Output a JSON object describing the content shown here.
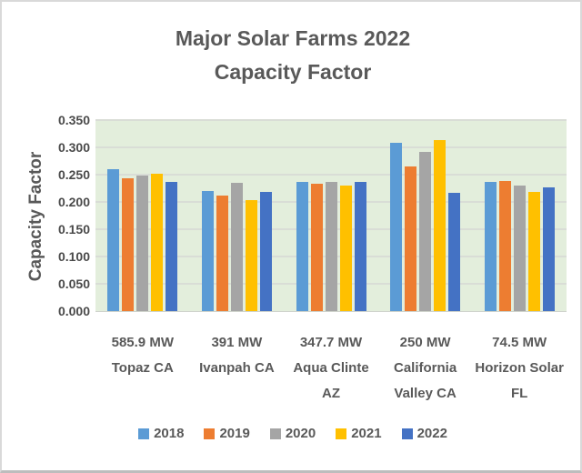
{
  "window": {
    "background": "#ffffff",
    "border_color": "#d9d9d9"
  },
  "chart_data": {
    "type": "bar",
    "title_lines": [
      "Major Solar Farms 2022",
      "Capacity Factor"
    ],
    "ylabel": "Capacity Factor",
    "categories": [
      "585.9 MW Topaz CA",
      "391 MW Ivanpah CA",
      "347.7 MW Aqua Clinte AZ",
      "250 MW California Valley CA",
      "74.5 MW Horizon Solar FL"
    ],
    "categories_lines": [
      [
        "585.9 MW",
        "Topaz CA"
      ],
      [
        "391 MW",
        "Ivanpah CA"
      ],
      [
        "347.7 MW",
        "Aqua Clinte",
        "AZ"
      ],
      [
        "250 MW",
        "California",
        "Valley CA"
      ],
      [
        "74.5 MW",
        "Horizon Solar",
        "FL"
      ]
    ],
    "series": [
      {
        "name": "2018",
        "color": "#5B9BD5",
        "values": [
          0.26,
          0.22,
          0.236,
          0.308,
          0.237
        ]
      },
      {
        "name": "2019",
        "color": "#ED7D31",
        "values": [
          0.243,
          0.211,
          0.233,
          0.265,
          0.238
        ]
      },
      {
        "name": "2020",
        "color": "#A5A5A5",
        "values": [
          0.248,
          0.235,
          0.236,
          0.292,
          0.23
        ]
      },
      {
        "name": "2021",
        "color": "#FFC000",
        "values": [
          0.252,
          0.204,
          0.23,
          0.314,
          0.218
        ]
      },
      {
        "name": "2022",
        "color": "#4472C4",
        "values": [
          0.236,
          0.218,
          0.237,
          0.217,
          0.226
        ]
      }
    ],
    "ylim": [
      0,
      0.35
    ],
    "ytick_step": 0.05,
    "ytick_labels": [
      "0.000",
      "0.050",
      "0.100",
      "0.150",
      "0.200",
      "0.250",
      "0.300",
      "0.350"
    ],
    "grid": true,
    "legend_position": "bottom",
    "plot_bg": "#e3eedc",
    "grid_color": "#d9ddd6",
    "text_color": "#595959"
  }
}
